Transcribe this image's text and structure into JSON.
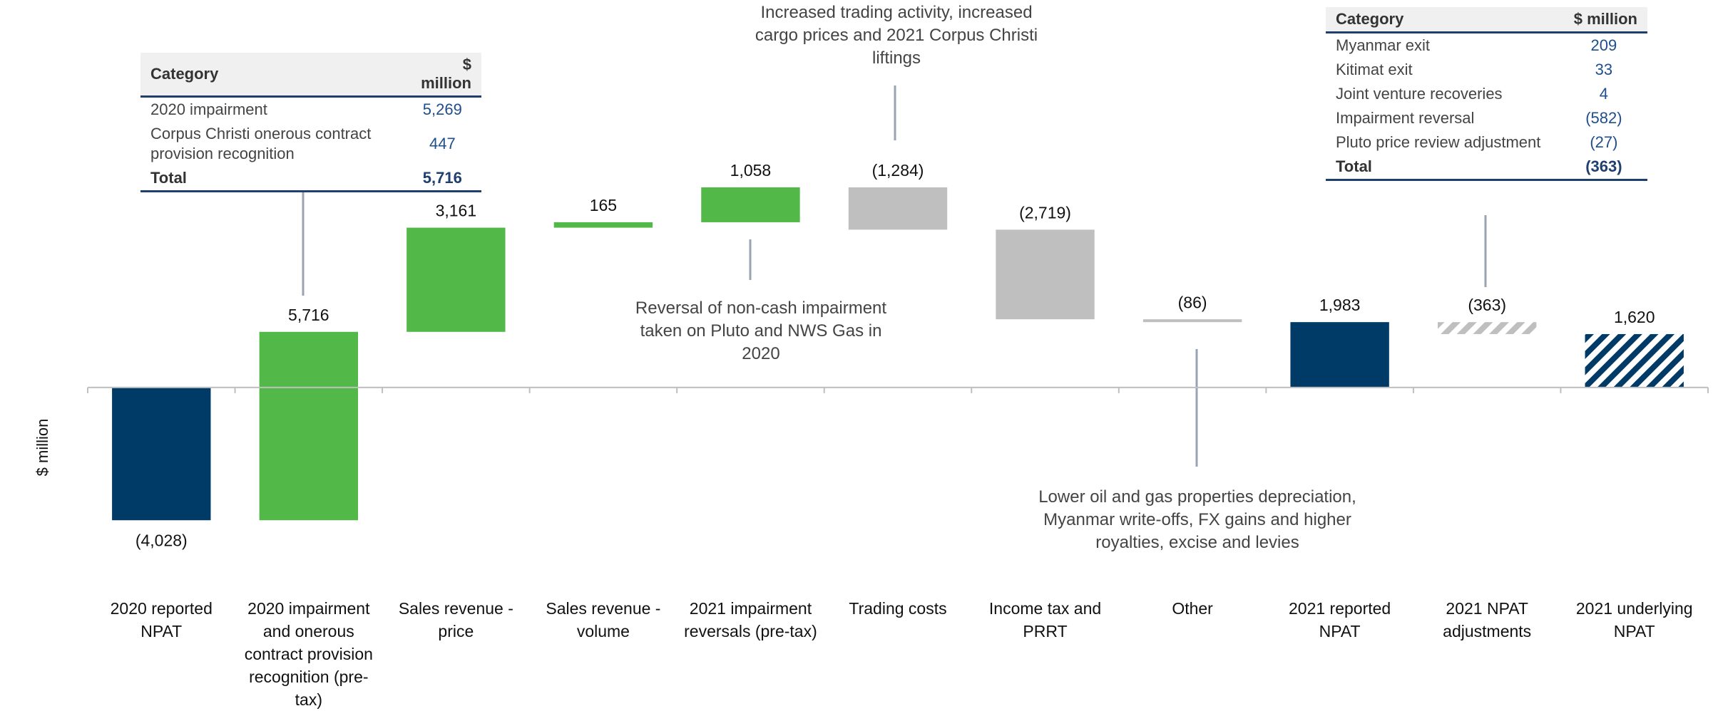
{
  "chart_data": {
    "type": "waterfall",
    "y_label": "$ million",
    "categories": [
      "2020 reported NPAT",
      "2020 impairment and onerous contract provision recognition (pre-tax)",
      "Sales revenue - price",
      "Sales revenue - volume",
      "2021 impairment reversals (pre-tax)",
      "Trading costs",
      "Income tax and PRRT",
      "Other",
      "2021 reported NPAT",
      "2021 NPAT adjustments",
      "2021 underlying NPAT"
    ],
    "values": [
      -4028,
      5716,
      3161,
      165,
      1058,
      -1284,
      -2719,
      -86,
      1983,
      -363,
      1620
    ],
    "value_labels": [
      "(4,028)",
      "5,716",
      "3,161",
      "165",
      "1,058",
      "(1,284)",
      "(2,719)",
      "(86)",
      "1,983",
      "(363)",
      "1,620"
    ],
    "bar_kind": [
      "total",
      "delta",
      "delta",
      "delta",
      "delta",
      "delta",
      "delta",
      "delta",
      "total",
      "delta",
      "total"
    ],
    "colors": [
      "#003a66",
      "#52b848",
      "#52b848",
      "#52b848",
      "#52b848",
      "#bfbfbf",
      "#bfbfbf",
      "#bfbfbf",
      "#003a66",
      "#bfbfbf",
      "#003a66"
    ],
    "hatched": [
      false,
      false,
      false,
      false,
      false,
      false,
      false,
      false,
      false,
      true,
      true
    ],
    "ylim": [
      -8000,
      11000
    ],
    "annotations": [
      "Increased trading activity, increased cargo prices and 2021 Corpus Christi liftings",
      "Reversal of non-cash impairment taken on Pluto and NWS Gas in 2020",
      "Lower oil and gas properties depreciation, Myanmar write-offs, FX gains and higher royalties, excise and levies"
    ]
  },
  "tables": [
    {
      "columns": [
        "Category",
        "$ million"
      ],
      "rows": [
        [
          "2020 impairment",
          "5,269"
        ],
        [
          "Corpus Christi onerous contract provision recognition",
          "447"
        ]
      ],
      "total": [
        "Total",
        "5,716"
      ]
    },
    {
      "columns": [
        "Category",
        "$ million"
      ],
      "rows": [
        [
          "Myanmar exit",
          "209"
        ],
        [
          "Kitimat exit",
          "33"
        ],
        [
          "Joint venture recoveries",
          "4"
        ],
        [
          "Impairment reversal",
          "(582)"
        ],
        [
          "Pluto price review adjustment",
          "(27)"
        ]
      ],
      "total": [
        "Total",
        "(363)"
      ]
    }
  ]
}
